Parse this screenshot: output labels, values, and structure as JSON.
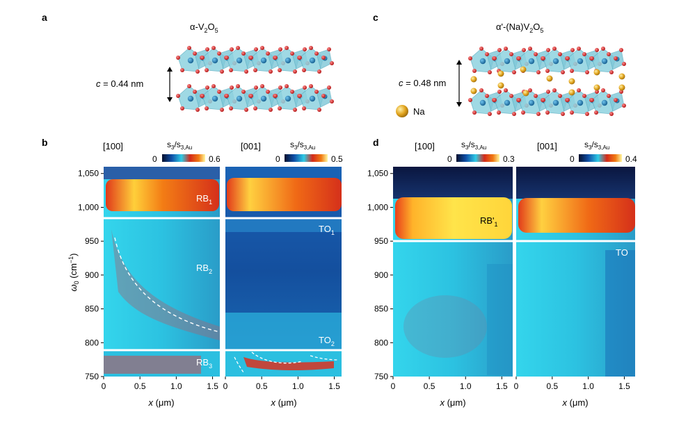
{
  "panels": {
    "a": {
      "label": "a",
      "title_main": "α-V",
      "title_sub1": "2",
      "title_mid": "O",
      "title_sub2": "5",
      "spacing_var": "c",
      "spacing_val": " = 0.44 nm"
    },
    "c": {
      "label": "c",
      "title_main": "α'-(Na)V",
      "title_sub1": "2",
      "title_mid": "O",
      "title_sub2": "5",
      "spacing_var": "c",
      "spacing_val": " = 0.48 nm",
      "legend_na": "Na"
    },
    "b": {
      "label": "b",
      "ylabel_main": "ω",
      "ylabel_sub": "0",
      "ylabel_unit": " (cm",
      "ylabel_exp": "−1",
      "ylabel_close": ")",
      "yticks": [
        "1,050",
        "1,000",
        "950",
        "900",
        "850",
        "800",
        "750"
      ],
      "xticks": [
        "0",
        "0.5",
        "1.0",
        "1.5"
      ],
      "xlabel_var": "x",
      "xlabel_unit": " (μm)",
      "left": {
        "dir": "[100]",
        "cb_min": "0",
        "cb_max": "0.6",
        "labels": {
          "rb1": "RB",
          "rb1_sub": "1",
          "rb2": "RB",
          "rb2_sub": "2",
          "rb3": "RB",
          "rb3_sub": "3"
        }
      },
      "right": {
        "dir": "[001]",
        "cb_min": "0",
        "cb_max": "0.5",
        "labels": {
          "to1": "TO",
          "to1_sub": "1",
          "to2": "TO",
          "to2_sub": "2"
        }
      }
    },
    "d": {
      "label": "d",
      "xticks": [
        "0",
        "0.5",
        "1.0",
        "1.5"
      ],
      "yticks": [
        "1,050",
        "1,000",
        "950",
        "900",
        "850",
        "800",
        "750"
      ],
      "xlabel_var": "x",
      "xlabel_unit": " (μm)",
      "left": {
        "dir": "[100]",
        "cb_min": "0",
        "cb_max": "0.3",
        "label_rb": "RB'",
        "label_rb_sub": "1"
      },
      "right": {
        "dir": "[001]",
        "cb_min": "0",
        "cb_max": "0.4",
        "label_to": "TO"
      }
    },
    "colorbar": {
      "title_main": "s",
      "title_sub1": "3",
      "title_slash": "/s",
      "title_sub2": "3,Au"
    }
  },
  "colors": {
    "dark": "#0d1d55",
    "blue": "#0f4ea6",
    "cyan": "#2fcbe6",
    "red": "#d42a1a",
    "orange": "#f07a12",
    "yellow": "#fff16a",
    "polyhedra": "#8fd3e0",
    "oxygen": "#d51f1f",
    "vanadium": "#1f7fb8",
    "sodium": "#e0a21b"
  }
}
